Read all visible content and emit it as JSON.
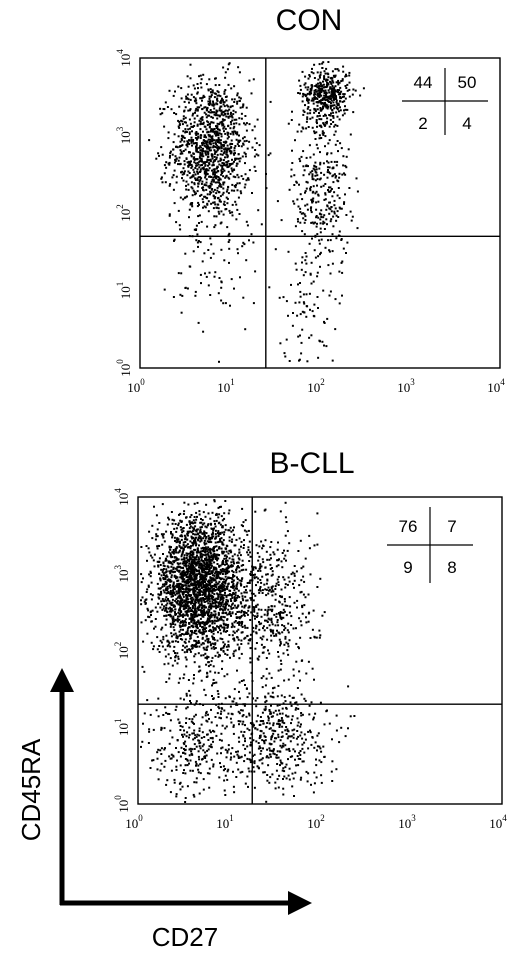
{
  "chart_data": [
    {
      "type": "scatter",
      "title": "CON",
      "xscale": "log",
      "yscale": "log",
      "xlim": [
        1,
        10000
      ],
      "ylim": [
        1,
        10000
      ],
      "x_ticks": [
        {
          "base": "10",
          "exp": "0"
        },
        {
          "base": "10",
          "exp": "1"
        },
        {
          "base": "10",
          "exp": "2"
        },
        {
          "base": "10",
          "exp": "3"
        },
        {
          "base": "10",
          "exp": "4"
        }
      ],
      "y_ticks": [
        {
          "base": "10",
          "exp": "0"
        },
        {
          "base": "10",
          "exp": "1"
        },
        {
          "base": "10",
          "exp": "2"
        },
        {
          "base": "10",
          "exp": "3"
        },
        {
          "base": "10",
          "exp": "4"
        }
      ],
      "quadrant_gates": {
        "x": 25,
        "y": 50
      },
      "quadrant_percentages": {
        "upper_left": "44",
        "upper_right": "50",
        "lower_left": "2",
        "lower_right": "4"
      },
      "populations": [
        {
          "x_center": 6,
          "y_center": 700,
          "x_spread_decades": 0.22,
          "y_spread_decades": 0.45,
          "count": 1150
        },
        {
          "x_center": 115,
          "y_center": 3500,
          "x_spread_decades": 0.13,
          "y_spread_decades": 0.18,
          "count": 420
        },
        {
          "x_center": 100,
          "y_center": 200,
          "x_spread_decades": 0.16,
          "y_spread_decades": 0.55,
          "count": 330
        },
        {
          "x_center": 7,
          "y_center": 25,
          "x_spread_decades": 0.25,
          "y_spread_decades": 0.45,
          "count": 90
        },
        {
          "x_center": 70,
          "y_center": 6,
          "x_spread_decades": 0.16,
          "y_spread_decades": 0.4,
          "count": 70
        }
      ]
    },
    {
      "type": "scatter",
      "title": "B-CLL",
      "xscale": "log",
      "yscale": "log",
      "xlim": [
        1,
        10000
      ],
      "ylim": [
        1,
        10000
      ],
      "x_ticks": [
        {
          "base": "10",
          "exp": "0"
        },
        {
          "base": "10",
          "exp": "1"
        },
        {
          "base": "10",
          "exp": "2"
        },
        {
          "base": "10",
          "exp": "3"
        },
        {
          "base": "10",
          "exp": "4"
        }
      ],
      "y_ticks": [
        {
          "base": "10",
          "exp": "0"
        },
        {
          "base": "10",
          "exp": "1"
        },
        {
          "base": "10",
          "exp": "2"
        },
        {
          "base": "10",
          "exp": "3"
        },
        {
          "base": "10",
          "exp": "4"
        }
      ],
      "quadrant_gates": {
        "x": 18,
        "y": 20
      },
      "quadrant_percentages": {
        "upper_left": "76",
        "upper_right": "7",
        "lower_left": "9",
        "lower_right": "8"
      },
      "populations": [
        {
          "x_center": 4.5,
          "y_center": 700,
          "x_spread_decades": 0.25,
          "y_spread_decades": 0.45,
          "count": 2500
        },
        {
          "x_center": 25,
          "y_center": 400,
          "x_spread_decades": 0.28,
          "y_spread_decades": 0.55,
          "count": 500
        },
        {
          "x_center": 30,
          "y_center": 8,
          "x_spread_decades": 0.3,
          "y_spread_decades": 0.35,
          "count": 450
        },
        {
          "x_center": 4,
          "y_center": 6,
          "x_spread_decades": 0.3,
          "y_spread_decades": 0.35,
          "count": 300
        }
      ]
    }
  ],
  "axis_labels": {
    "x": "CD27",
    "y": "CD45RA"
  },
  "colors": {
    "dots": "#000000",
    "lines": "#000000",
    "background": "#ffffff"
  }
}
